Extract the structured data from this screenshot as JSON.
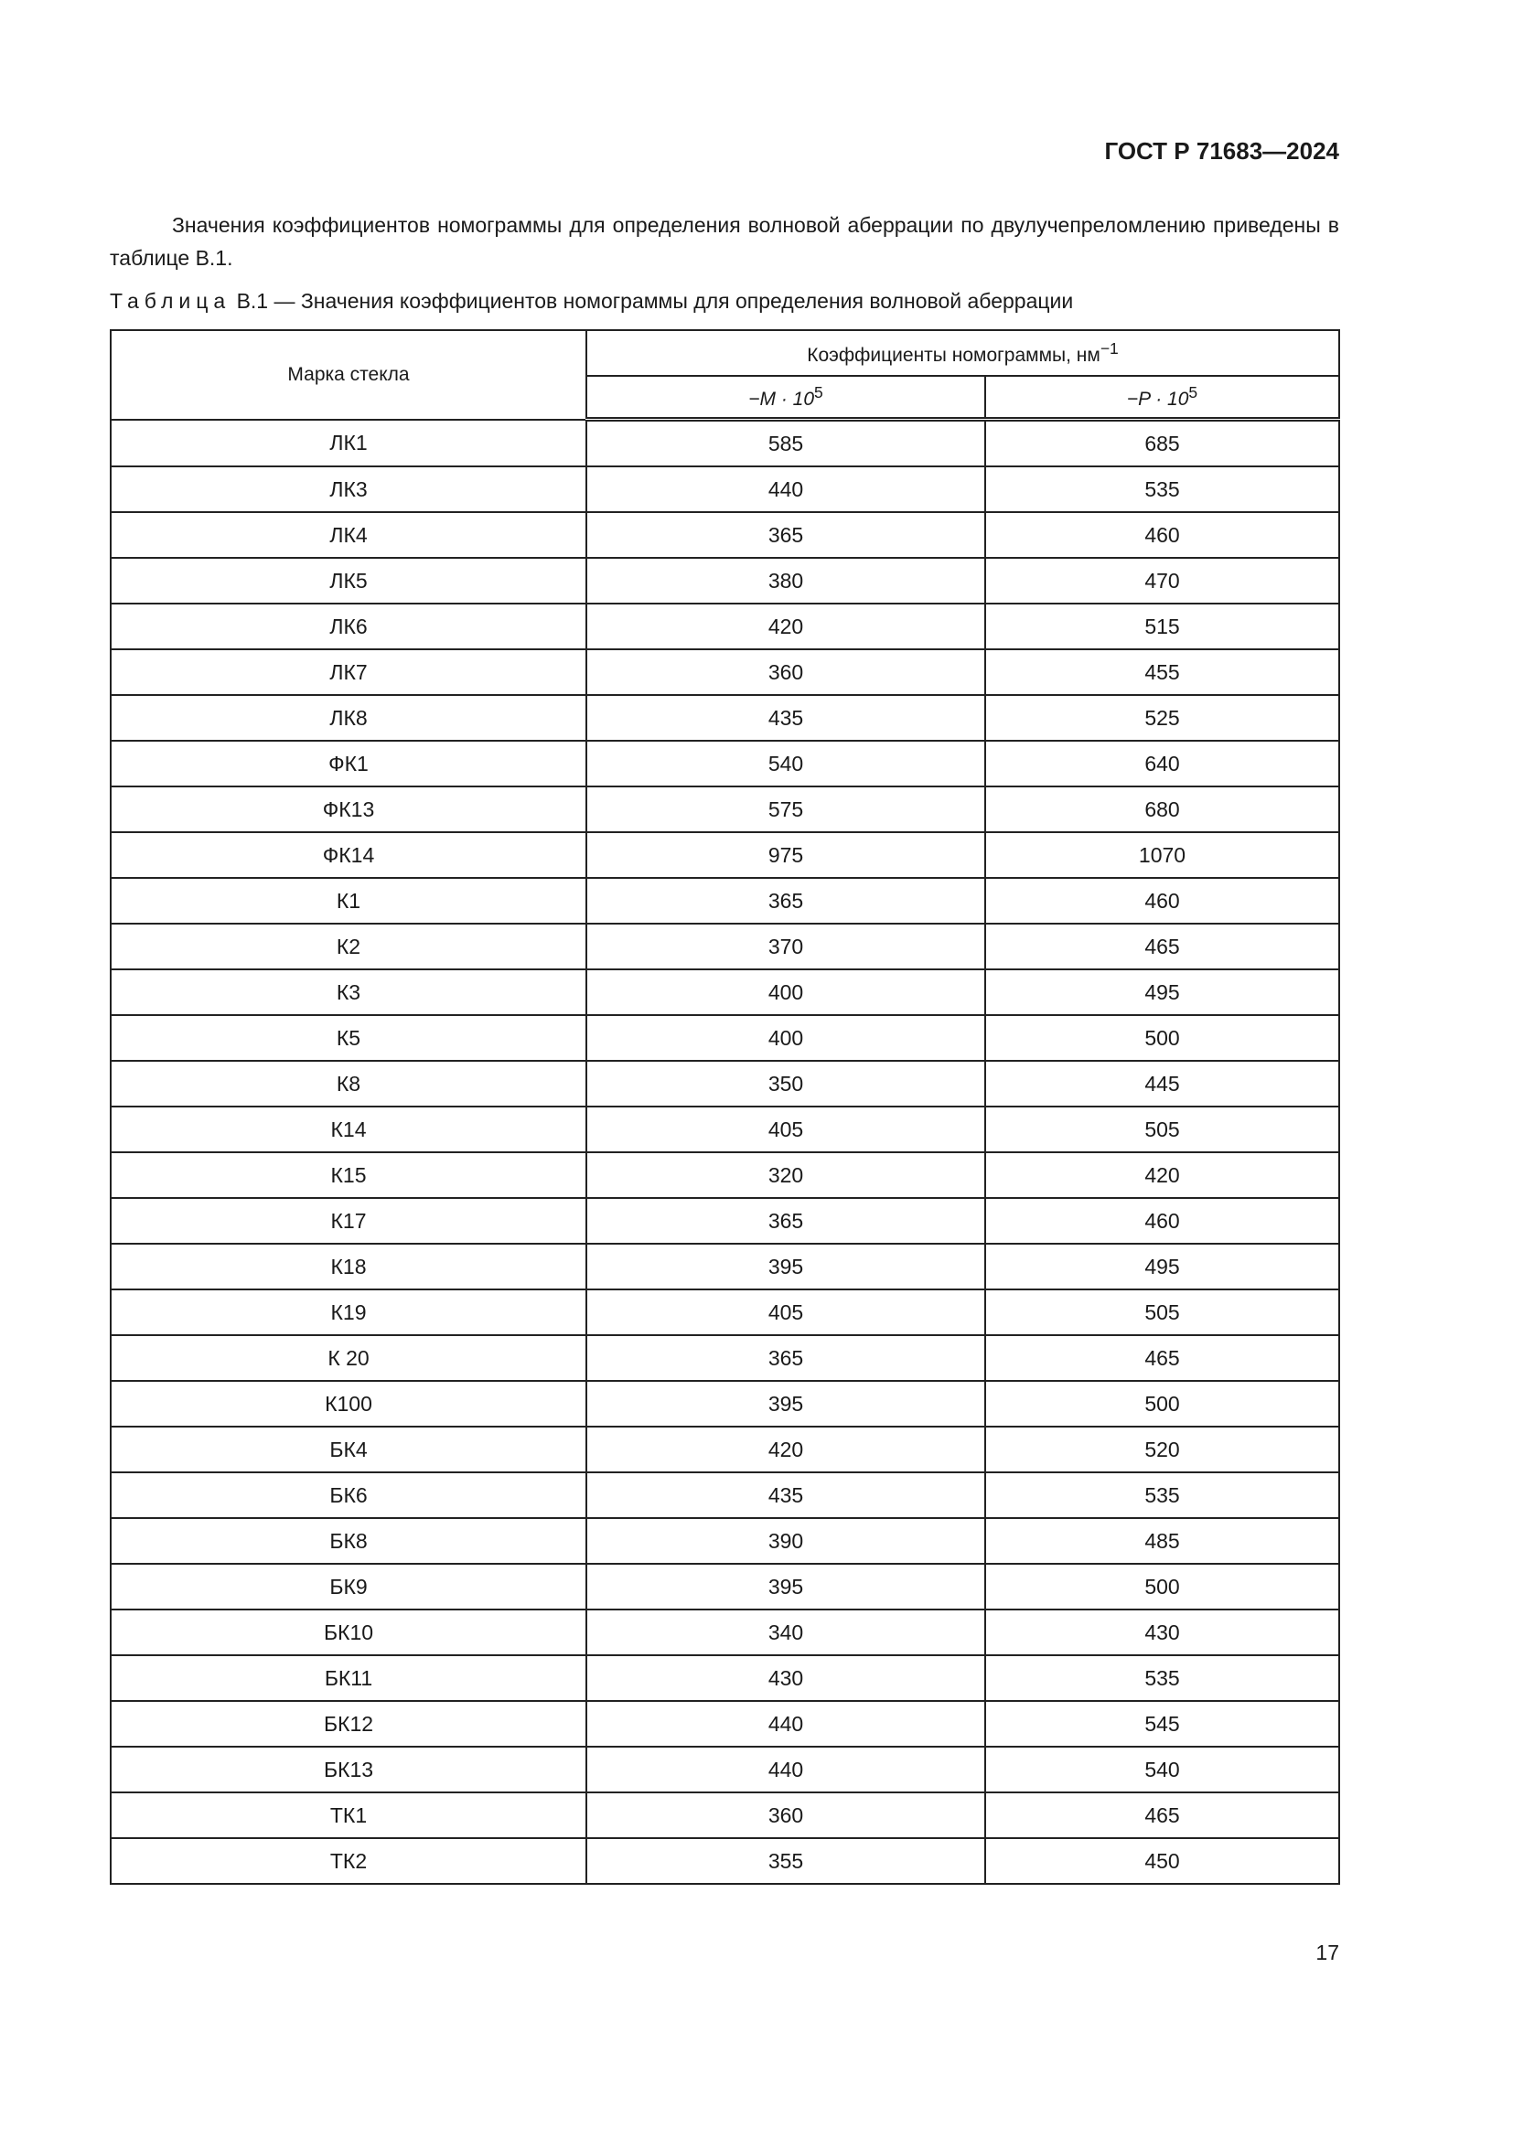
{
  "header": {
    "doc_id": "ГОСТ Р 71683—2024"
  },
  "paragraph": "Значения коэффициентов номограммы для определения волновой аберрации по двулучепреломлению приведены в таблице В.1.",
  "caption": {
    "label": "Таблица",
    "text": "В.1 — Значения коэффициентов номограммы для определения волновой аберрации"
  },
  "table": {
    "col_glass": "Марка стекла",
    "col_group": "Коэффициенты номограммы, нм",
    "col_group_sup": "−1",
    "col_m": "−M · 10",
    "col_p": "−P · 10",
    "exp": "5",
    "rows": [
      [
        "ЛК1",
        "585",
        "685"
      ],
      [
        "ЛК3",
        "440",
        "535"
      ],
      [
        "ЛК4",
        "365",
        "460"
      ],
      [
        "ЛК5",
        "380",
        "470"
      ],
      [
        "ЛК6",
        "420",
        "515"
      ],
      [
        "ЛК7",
        "360",
        "455"
      ],
      [
        "ЛК8",
        "435",
        "525"
      ],
      [
        "ФК1",
        "540",
        "640"
      ],
      [
        "ФК13",
        "575",
        "680"
      ],
      [
        "ФК14",
        "975",
        "1070"
      ],
      [
        "К1",
        "365",
        "460"
      ],
      [
        "К2",
        "370",
        "465"
      ],
      [
        "К3",
        "400",
        "495"
      ],
      [
        "К5",
        "400",
        "500"
      ],
      [
        "К8",
        "350",
        "445"
      ],
      [
        "К14",
        "405",
        "505"
      ],
      [
        "К15",
        "320",
        "420"
      ],
      [
        "К17",
        "365",
        "460"
      ],
      [
        "К18",
        "395",
        "495"
      ],
      [
        "К19",
        "405",
        "505"
      ],
      [
        "К 20",
        "365",
        "465"
      ],
      [
        "К100",
        "395",
        "500"
      ],
      [
        "БК4",
        "420",
        "520"
      ],
      [
        "БК6",
        "435",
        "535"
      ],
      [
        "БК8",
        "390",
        "485"
      ],
      [
        "БК9",
        "395",
        "500"
      ],
      [
        "БК10",
        "340",
        "430"
      ],
      [
        "БК11",
        "430",
        "535"
      ],
      [
        "БК12",
        "440",
        "545"
      ],
      [
        "БК13",
        "440",
        "540"
      ],
      [
        "ТК1",
        "360",
        "465"
      ],
      [
        "ТК2",
        "355",
        "450"
      ]
    ]
  },
  "page_number": "17"
}
